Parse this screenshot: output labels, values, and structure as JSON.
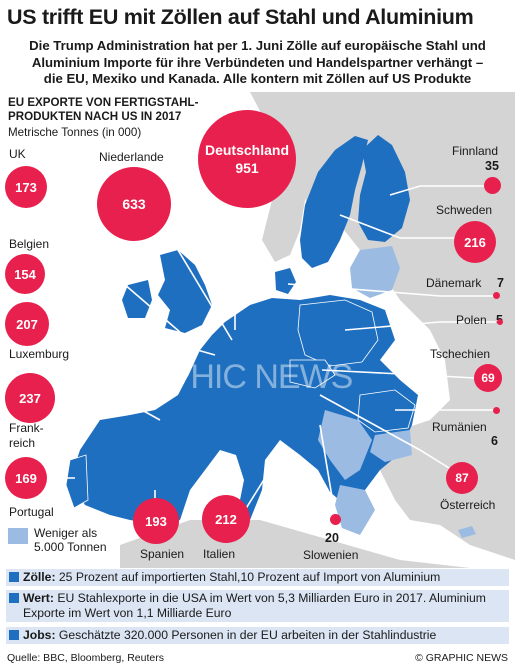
{
  "header": {
    "title": "US trifft EU mit Zöllen auf Stahl und Aluminium",
    "subtitle_lines": [
      "Die Trump Administration hat per 1. Juni Zölle auf europäische Stahl und",
      "Aluminium Importe für ihre Verbündeten und Handelspartner verhängt –",
      "die EU, Mexiko und Kanada. Alle kontern mit Zöllen auf US Produkte"
    ]
  },
  "chart": {
    "title_lines": [
      "EU Exporte von Fertigstahl-",
      "produkten nach US in 2017"
    ],
    "unit": "Metrische Tonnes (in 000)"
  },
  "chart_data": {
    "type": "bubble-map",
    "title": "EU Exporte von Fertigstahlprodukten nach US in 2017",
    "unit": "Metrische Tonnes (in 000)",
    "countries": [
      {
        "name": "UK",
        "value": 173
      },
      {
        "name": "Niederlande",
        "value": 633
      },
      {
        "name": "Deutschland",
        "value": 951
      },
      {
        "name": "Finnland",
        "value": 35
      },
      {
        "name": "Schweden",
        "value": 216
      },
      {
        "name": "Belgien",
        "value": 154
      },
      {
        "name": "Dänemark",
        "value": 7
      },
      {
        "name": "Polen",
        "value": 5
      },
      {
        "name": "Luxemburg",
        "value": 207
      },
      {
        "name": "Tschechien",
        "value": 69
      },
      {
        "name": "Frankreich",
        "value": 237
      },
      {
        "name": "Rumänien",
        "value": 6
      },
      {
        "name": "Portugal",
        "value": 169
      },
      {
        "name": "Spanien",
        "value": 193
      },
      {
        "name": "Italien",
        "value": 212
      },
      {
        "name": "Slowenien",
        "value": 20
      },
      {
        "name": "Österreich",
        "value": 87
      }
    ]
  },
  "legend": {
    "lines": [
      "Weniger als",
      "5.000 Tonnen"
    ],
    "color": "#9bbbe3"
  },
  "info": [
    {
      "label": "Zölle:",
      "text": "25 Prozent auf importierten Stahl,10 Prozent auf Import von Aluminium"
    },
    {
      "label": "Wert:",
      "text": "EU Stahlexporte in die USA im Wert von 5,3 Milliarden Euro in 2017. Aluminium Exporte im Wert von 1,1 Milliarde Euro"
    },
    {
      "label": "Jobs:",
      "text": "Geschätzte 320.000 Personen in der EU arbeiten in der Stahlindustrie"
    }
  ],
  "footer": {
    "source": "Quelle: BBC, Bloomberg, Reuters",
    "copyright": "© GRAPHIC NEWS"
  },
  "watermark": "GRAPHIC NEWS",
  "colors": {
    "bubble": "#e8204d",
    "eu": "#1f6fc0",
    "eu_light": "#9bbbe3",
    "nonEU": "#d4d4d4",
    "sea": "#ffffff"
  }
}
